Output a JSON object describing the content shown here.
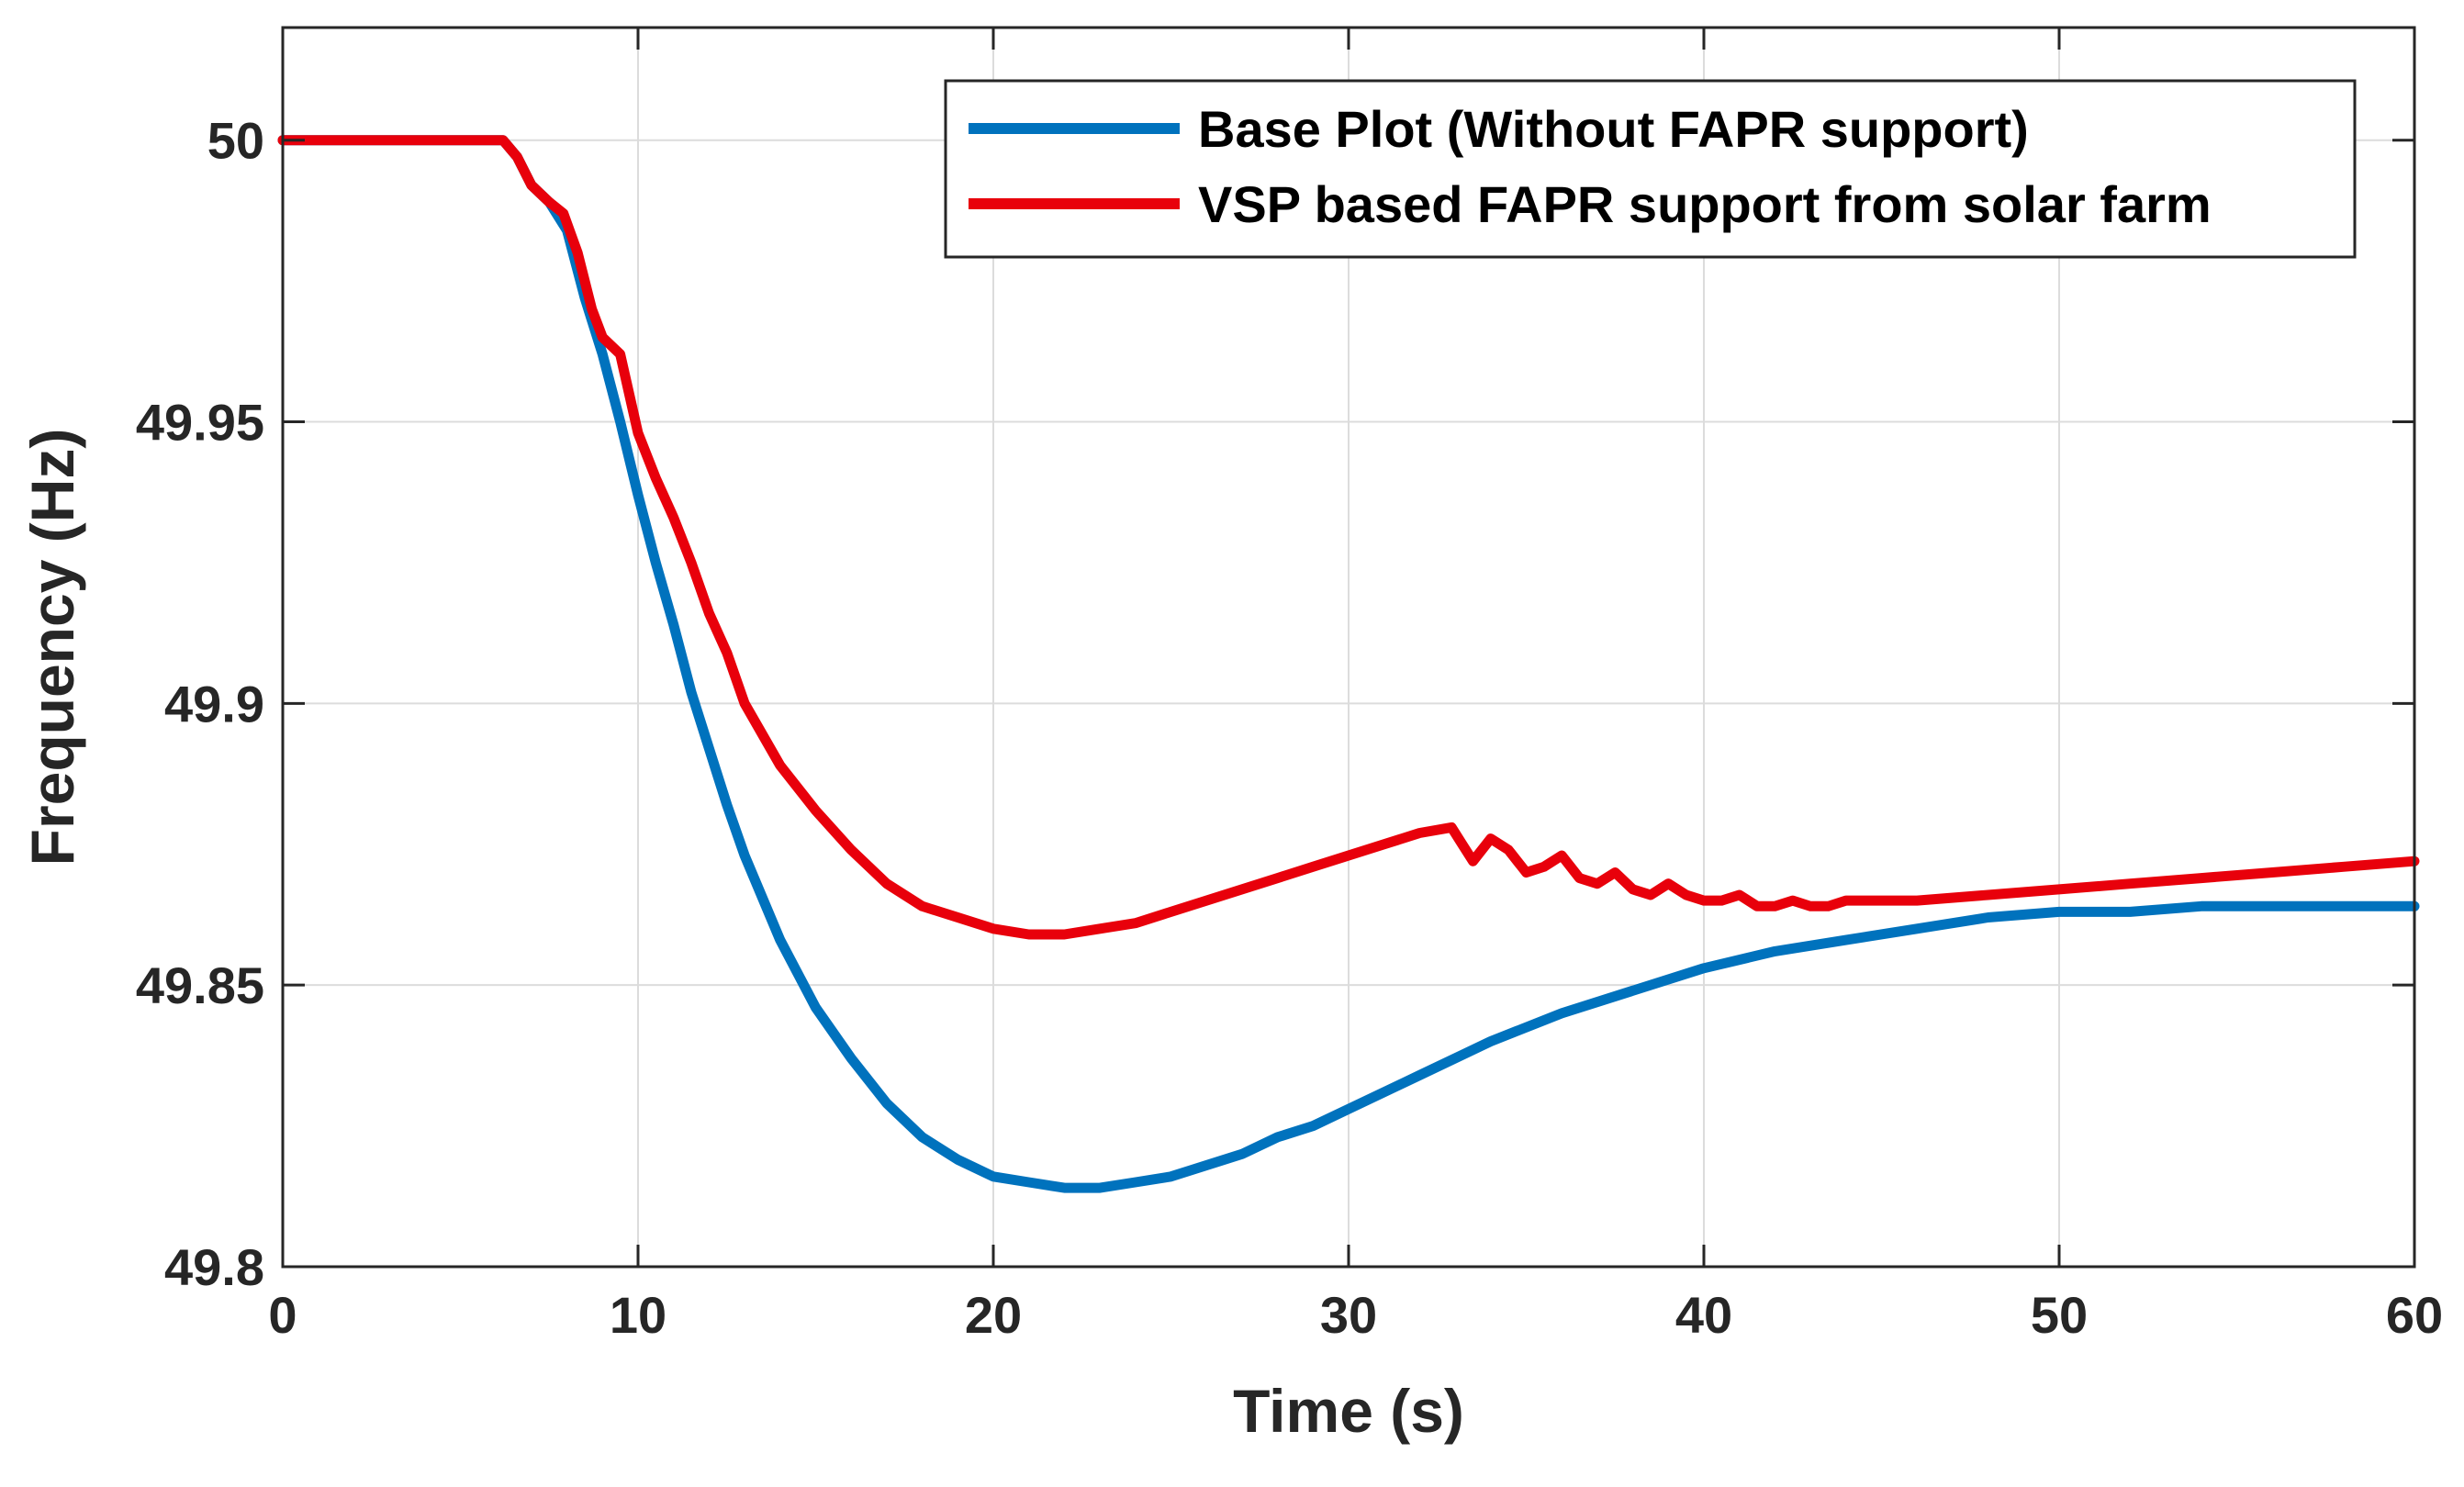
{
  "chart_data": {
    "type": "line",
    "title": "",
    "xlabel": "Time (s)",
    "ylabel": "Frequency (Hz)",
    "xlim": [
      0,
      60
    ],
    "ylim": [
      49.8,
      50.02
    ],
    "grid": true,
    "legend_position": "top-right",
    "x_ticks": [
      0,
      10,
      20,
      30,
      40,
      50,
      60
    ],
    "x_tick_labels": [
      "0",
      "10",
      "20",
      "30",
      "40",
      "50",
      "60"
    ],
    "y_ticks": [
      49.8,
      49.85,
      49.9,
      49.95,
      50
    ],
    "y_tick_labels": [
      "49.8",
      "49.85",
      "49.9",
      "49.95",
      "50"
    ],
    "series": [
      {
        "name": "Base Plot (Without FAPR support)",
        "color": "#0072BD",
        "x": [
          0,
          6.2,
          6.6,
          7.0,
          7.5,
          8.0,
          8.5,
          9.0,
          9.5,
          10,
          10.5,
          11,
          11.5,
          12,
          12.5,
          13,
          14,
          15,
          16,
          17,
          18,
          19,
          20,
          21,
          22,
          23,
          24,
          25,
          26,
          27,
          28,
          29,
          30,
          32,
          34,
          36,
          38,
          40,
          42,
          44,
          46,
          48,
          50,
          52,
          54,
          56,
          58,
          60
        ],
        "y": [
          50.0,
          50.0,
          49.997,
          49.992,
          49.989,
          49.984,
          49.972,
          49.962,
          49.95,
          49.937,
          49.925,
          49.914,
          49.902,
          49.892,
          49.882,
          49.873,
          49.858,
          49.846,
          49.837,
          49.829,
          49.823,
          49.819,
          49.816,
          49.815,
          49.814,
          49.814,
          49.815,
          49.816,
          49.818,
          49.82,
          49.823,
          49.825,
          49.828,
          49.834,
          49.84,
          49.845,
          49.849,
          49.853,
          49.856,
          49.858,
          49.86,
          49.862,
          49.863,
          49.863,
          49.864,
          49.864,
          49.864,
          49.864
        ]
      },
      {
        "name": "VSP based FAPR support from solar farm",
        "color": "#E8000B",
        "x": [
          0,
          6.2,
          6.6,
          7.0,
          7.5,
          7.9,
          8.3,
          8.7,
          9.0,
          9.5,
          10,
          10.5,
          11,
          11.5,
          12,
          12.5,
          13,
          14,
          15,
          16,
          17,
          18,
          19,
          20,
          21,
          22,
          23,
          24,
          25,
          26,
          27,
          28,
          29,
          30,
          31,
          32,
          32.9,
          33.2,
          33.5,
          34,
          34.5,
          35,
          35.5,
          36,
          36.5,
          37,
          37.5,
          38,
          38.5,
          39,
          39.5,
          40,
          40.5,
          41,
          41.5,
          42,
          42.5,
          43,
          43.5,
          44,
          45,
          46,
          48,
          50,
          52,
          54,
          56,
          58,
          60
        ],
        "y": [
          50.0,
          50.0,
          49.997,
          49.992,
          49.989,
          49.987,
          49.98,
          49.97,
          49.965,
          49.962,
          49.948,
          49.94,
          49.933,
          49.925,
          49.916,
          49.909,
          49.9,
          49.889,
          49.881,
          49.874,
          49.868,
          49.864,
          49.862,
          49.86,
          49.859,
          49.859,
          49.86,
          49.861,
          49.863,
          49.865,
          49.867,
          49.869,
          49.871,
          49.873,
          49.875,
          49.877,
          49.878,
          49.875,
          49.872,
          49.876,
          49.874,
          49.87,
          49.871,
          49.873,
          49.869,
          49.868,
          49.87,
          49.867,
          49.866,
          49.868,
          49.866,
          49.865,
          49.865,
          49.866,
          49.864,
          49.864,
          49.865,
          49.864,
          49.864,
          49.865,
          49.865,
          49.865,
          49.866,
          49.867,
          49.868,
          49.869,
          49.87,
          49.871,
          49.872
        ]
      }
    ]
  }
}
